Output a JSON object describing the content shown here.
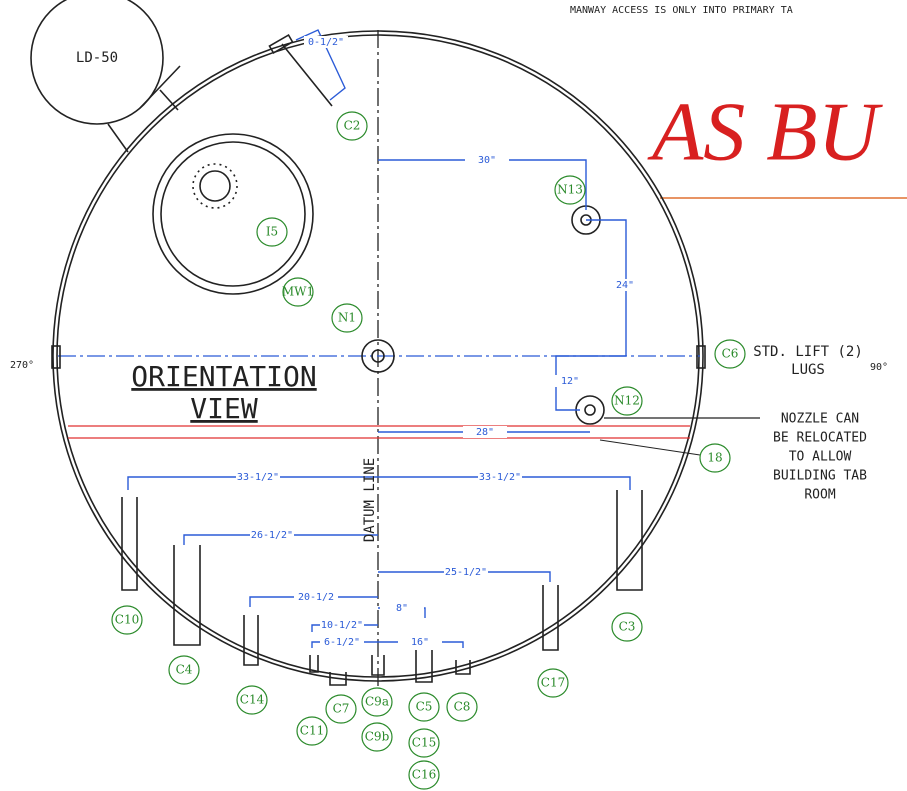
{
  "header_note": "MANWAY ACCESS IS ONLY INTO PRIMARY TA",
  "stamp": "AS BU",
  "tank_label": "LD-50",
  "view_title": [
    "ORIENTATION",
    "VIEW"
  ],
  "datum_label": "DATUM LINE",
  "angles": [
    "270°",
    "90°"
  ],
  "lift_lugs": [
    "STD. LIFT (2)",
    "LUGS"
  ],
  "relocation_note": [
    "NOZZLE CAN",
    "BE RELOCATED",
    "TO ALLOW",
    "BUILDING TAB",
    "ROOM"
  ],
  "dimensions": [
    "0-1/2\"",
    "30\"",
    "24\"",
    "12\"",
    "28\"",
    "33-1/2\"",
    "33-1/2\"",
    "26-1/2\"",
    "25-1/2\"",
    "20-1/2",
    "8\"",
    "10-1/2\"",
    "6-1/2\"",
    "16\""
  ],
  "tags": [
    "C2",
    "N13",
    "I5",
    "MW1",
    "N1",
    "N12",
    "C6",
    "18",
    "C10",
    "C3",
    "C4",
    "C14",
    "C17",
    "C7",
    "C9a",
    "C5",
    "C8",
    "C11",
    "C9b",
    "C15",
    "C16"
  ]
}
